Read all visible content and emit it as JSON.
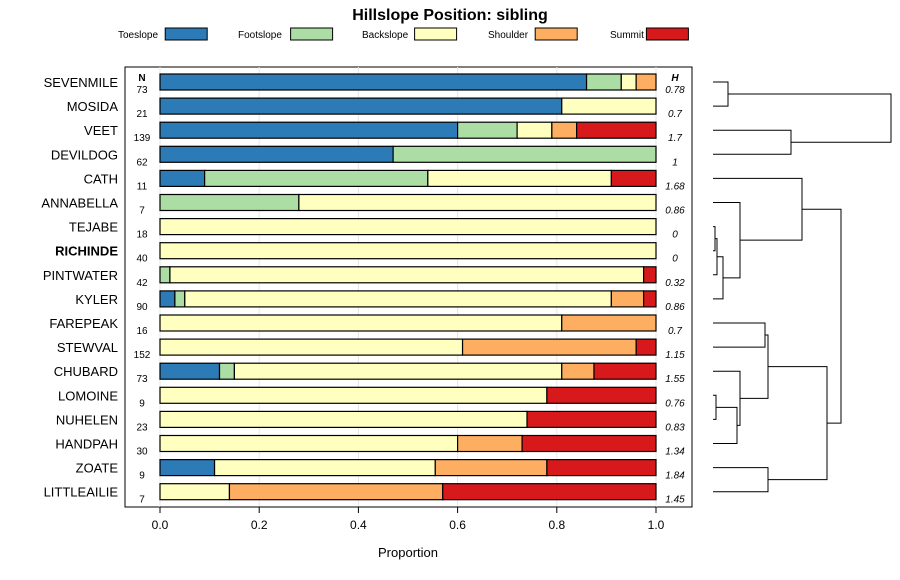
{
  "chart_data": {
    "type": "bar",
    "orientation": "horizontal-stacked",
    "title": "Hillslope Position: sibling",
    "xlabel": "Proportion",
    "xlim": [
      0,
      1
    ],
    "xticks": [
      "0.0",
      "0.2",
      "0.4",
      "0.6",
      "0.8",
      "1.0"
    ],
    "n_header": "N",
    "h_header": "H",
    "legend": [
      {
        "name": "Toeslope",
        "color": "#2c7bb6"
      },
      {
        "name": "Footslope",
        "color": "#abdda4"
      },
      {
        "name": "Backslope",
        "color": "#ffffbf"
      },
      {
        "name": "Shoulder",
        "color": "#fdae61"
      },
      {
        "name": "Summit",
        "color": "#d7191c"
      }
    ],
    "rows": [
      {
        "name": "SEVENMILE",
        "n": "73",
        "h": "0.78",
        "bold": false,
        "values": [
          0.86,
          0.07,
          0.03,
          0.04,
          0.0
        ]
      },
      {
        "name": "MOSIDA",
        "n": "21",
        "h": "0.7",
        "bold": false,
        "values": [
          0.81,
          0.0,
          0.19,
          0.0,
          0.0
        ]
      },
      {
        "name": "VEET",
        "n": "139",
        "h": "1.7",
        "bold": false,
        "values": [
          0.6,
          0.12,
          0.07,
          0.05,
          0.16
        ]
      },
      {
        "name": "DEVILDOG",
        "n": "62",
        "h": "1",
        "bold": false,
        "values": [
          0.47,
          0.53,
          0.0,
          0.0,
          0.0
        ]
      },
      {
        "name": "CATH",
        "n": "11",
        "h": "1.68",
        "bold": false,
        "values": [
          0.09,
          0.45,
          0.37,
          0.0,
          0.09
        ]
      },
      {
        "name": "ANNABELLA",
        "n": "7",
        "h": "0.86",
        "bold": false,
        "values": [
          0.0,
          0.28,
          0.72,
          0.0,
          0.0
        ]
      },
      {
        "name": "TEJABE",
        "n": "18",
        "h": "0",
        "bold": false,
        "values": [
          0.0,
          0.0,
          1.0,
          0.0,
          0.0
        ]
      },
      {
        "name": "RICHINDE",
        "n": "40",
        "h": "0",
        "bold": true,
        "values": [
          0.0,
          0.0,
          1.0,
          0.0,
          0.0
        ]
      },
      {
        "name": "PINTWATER",
        "n": "42",
        "h": "0.32",
        "bold": false,
        "values": [
          0.0,
          0.02,
          0.955,
          0.0,
          0.025
        ]
      },
      {
        "name": "KYLER",
        "n": "90",
        "h": "0.86",
        "bold": false,
        "values": [
          0.03,
          0.02,
          0.86,
          0.065,
          0.025
        ]
      },
      {
        "name": "FAREPEAK",
        "n": "16",
        "h": "0.7",
        "bold": false,
        "values": [
          0.0,
          0.0,
          0.81,
          0.19,
          0.0
        ]
      },
      {
        "name": "STEWVAL",
        "n": "152",
        "h": "1.15",
        "bold": false,
        "values": [
          0.0,
          0.0,
          0.61,
          0.35,
          0.04
        ]
      },
      {
        "name": "CHUBARD",
        "n": "73",
        "h": "1.55",
        "bold": false,
        "values": [
          0.12,
          0.03,
          0.66,
          0.065,
          0.125
        ]
      },
      {
        "name": "LOMOINE",
        "n": "9",
        "h": "0.76",
        "bold": false,
        "values": [
          0.0,
          0.0,
          0.78,
          0.0,
          0.22
        ]
      },
      {
        "name": "NUHELEN",
        "n": "23",
        "h": "0.83",
        "bold": false,
        "values": [
          0.0,
          0.0,
          0.74,
          0.0,
          0.26
        ]
      },
      {
        "name": "HANDPAH",
        "n": "30",
        "h": "1.34",
        "bold": false,
        "values": [
          0.0,
          0.0,
          0.6,
          0.13,
          0.27
        ]
      },
      {
        "name": "ZOATE",
        "n": "9",
        "h": "1.84",
        "bold": false,
        "values": [
          0.11,
          0.0,
          0.445,
          0.225,
          0.22
        ]
      },
      {
        "name": "LITTLEAILIE",
        "n": "7",
        "h": "1.45",
        "bold": false,
        "values": [
          0.0,
          0.0,
          0.14,
          0.43,
          0.43
        ]
      }
    ],
    "dendrogram": {
      "type": "hierarchical-clustering",
      "merges": [
        {
          "a": "SEVENMILE",
          "b": "MOSIDA",
          "height": 0.15
        },
        {
          "a": "VEET",
          "b": "DEVILDOG",
          "height": 0.78
        },
        {
          "a": "TEJABE",
          "b": "RICHINDE",
          "height": 0.02
        },
        {
          "a": "c3",
          "b": "PINTWATER",
          "height": 0.04
        },
        {
          "a": "c4",
          "b": "KYLER",
          "height": 0.1
        },
        {
          "a": "ANNABELLA",
          "b": "c5",
          "height": 0.27
        },
        {
          "a": "CATH",
          "b": "c6",
          "height": 0.89
        },
        {
          "a": "LOMOINE",
          "b": "NUHELEN",
          "height": 0.03
        },
        {
          "a": "c8",
          "b": "HANDPAH",
          "height": 0.24
        },
        {
          "a": "CHUBARD",
          "b": "c9",
          "height": 0.27
        },
        {
          "a": "FAREPEAK",
          "b": "STEWVAL",
          "height": 0.52
        },
        {
          "a": "c11",
          "b": "c10",
          "height": 0.55
        },
        {
          "a": "ZOATE",
          "b": "LITTLEAILIE",
          "height": 0.55
        },
        {
          "a": "c12",
          "b": "c13",
          "height": 1.14
        },
        {
          "a": "c7",
          "b": "c14",
          "height": 1.28
        },
        {
          "a": "c1",
          "b": "c2",
          "height": 1.78
        }
      ]
    }
  }
}
